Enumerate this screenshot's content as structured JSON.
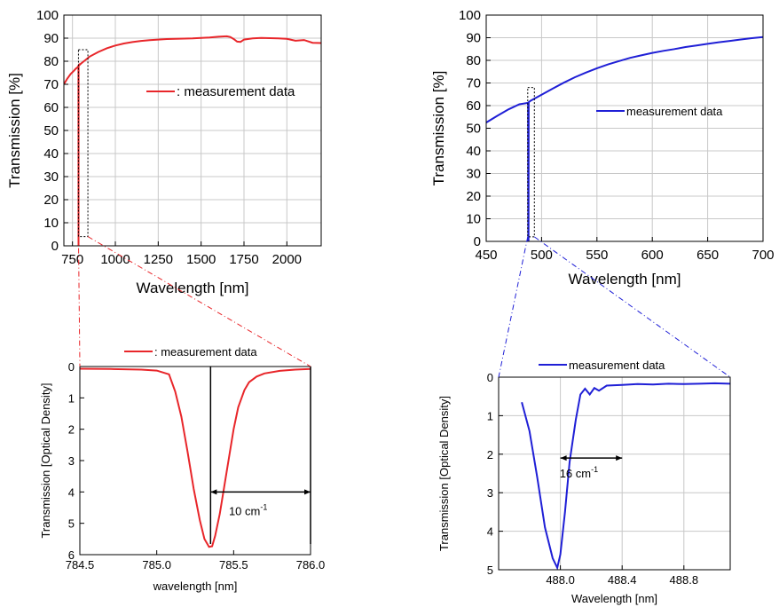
{
  "chart_data": [
    {
      "type": "line",
      "xlabel": "Wavelength [nm]",
      "ylabel": "Transmission [%]",
      "xlim": [
        700,
        2200
      ],
      "ylim": [
        0,
        100
      ],
      "xticks": [
        "750",
        "1000",
        "1250",
        "1500",
        "1750",
        "2000"
      ],
      "yticks": [
        "0",
        "10",
        "20",
        "30",
        "40",
        "50",
        "60",
        "70",
        "80",
        "90",
        "100"
      ],
      "grid": true,
      "legend": "center-right",
      "line_color": "#e8262a",
      "series": [
        {
          "name": ": measurement data",
          "x": [
            700,
            720,
            740,
            760,
            770,
            780,
            785,
            785.3,
            785.6,
            786,
            790,
            800,
            820,
            850,
            900,
            950,
            1000,
            1050,
            1100,
            1150,
            1200,
            1250,
            1300,
            1350,
            1400,
            1450,
            1500,
            1550,
            1600,
            1650,
            1670,
            1690,
            1710,
            1730,
            1750,
            1800,
            1850,
            1900,
            1950,
            2000,
            2050,
            2100,
            2150,
            2200
          ],
          "y": [
            70,
            72.5,
            74.5,
            76,
            76.8,
            77.4,
            78,
            0,
            0,
            78,
            78.3,
            79,
            80.2,
            82,
            84,
            85.6,
            86.8,
            87.7,
            88.3,
            88.8,
            89.1,
            89.4,
            89.6,
            89.7,
            89.8,
            89.9,
            90.1,
            90.3,
            90.6,
            90.8,
            90.5,
            89.6,
            88.5,
            88.4,
            89.4,
            89.9,
            90.1,
            90,
            89.9,
            89.7,
            88.9,
            89.2,
            88,
            87.9
          ]
        }
      ],
      "zoom_box": {
        "x": [
          785,
          840
        ],
        "y": [
          4,
          85
        ]
      }
    },
    {
      "type": "line",
      "xlabel": "Wavelength [nm]",
      "ylabel": "Transmission [%]",
      "xlim": [
        450,
        700
      ],
      "ylim": [
        0,
        100
      ],
      "xticks": [
        "450",
        "500",
        "550",
        "600",
        "650",
        "700"
      ],
      "yticks": [
        "0",
        "10",
        "20",
        "30",
        "40",
        "50",
        "60",
        "70",
        "80",
        "90",
        "100"
      ],
      "grid": true,
      "legend": "center-right",
      "line_color": "#1f1fd6",
      "series": [
        {
          "name": "measurement data",
          "x": [
            450,
            460,
            470,
            480,
            487.8,
            488,
            488.2,
            488.4,
            490,
            500,
            510,
            520,
            530,
            540,
            550,
            560,
            570,
            580,
            590,
            600,
            610,
            620,
            630,
            640,
            650,
            660,
            670,
            680,
            690,
            700
          ],
          "y": [
            52.5,
            55.5,
            58.3,
            60.6,
            61.2,
            0,
            0,
            61.5,
            62.1,
            64.8,
            67.5,
            70.1,
            72.5,
            74.6,
            76.5,
            78.2,
            79.7,
            81.1,
            82.2,
            83.3,
            84.2,
            85,
            85.9,
            86.6,
            87.3,
            88,
            88.6,
            89.2,
            89.8,
            90.3
          ]
        }
      ],
      "zoom_box": {
        "x": [
          487.5,
          493.5
        ],
        "y": [
          2,
          68
        ]
      }
    },
    {
      "type": "line",
      "xlabel": "wavelength [nm]",
      "ylabel": "Transmission [Optical Density]",
      "xlim": [
        784.5,
        786.0
      ],
      "ylim": [
        6,
        0
      ],
      "y_inverted": true,
      "xticks": [
        "784.5",
        "785.0",
        "785.5",
        "786.0"
      ],
      "yticks": [
        "0",
        "1",
        "2",
        "3",
        "4",
        "5",
        "6"
      ],
      "grid": false,
      "legend": "top-center",
      "line_color": "#e8262a",
      "series": [
        {
          "name": ": measurement data",
          "x": [
            784.5,
            784.7,
            784.9,
            785.0,
            785.08,
            785.12,
            785.16,
            785.2,
            785.24,
            785.28,
            785.31,
            785.34,
            785.36,
            785.38,
            785.41,
            785.44,
            785.47,
            785.5,
            785.53,
            785.57,
            785.6,
            785.65,
            785.7,
            785.8,
            785.9,
            786.0
          ],
          "y": [
            0.07,
            0.08,
            0.1,
            0.13,
            0.25,
            0.8,
            1.6,
            2.7,
            3.9,
            4.9,
            5.5,
            5.75,
            5.73,
            5.4,
            4.7,
            3.8,
            2.9,
            2.0,
            1.3,
            0.75,
            0.5,
            0.32,
            0.22,
            0.14,
            0.1,
            0.08
          ]
        }
      ],
      "annotations": [
        {
          "text": "10 cm",
          "superscript": "-1",
          "x_from": 785.35,
          "x_to": 786.0,
          "y": 4.0
        }
      ],
      "vlines": [
        785.35,
        786.0
      ]
    },
    {
      "type": "line",
      "xlabel": "Wavelength [nm]",
      "ylabel": "Transmission [Optical Density]",
      "xlim": [
        487.6,
        489.1
      ],
      "ylim": [
        5,
        0
      ],
      "y_inverted": true,
      "xticks": [
        "488.0",
        "488.4",
        "488.8"
      ],
      "yticks": [
        "0",
        "1",
        "2",
        "3",
        "4",
        "5"
      ],
      "grid": true,
      "legend": "top-center",
      "line_color": "#1f1fd6",
      "series": [
        {
          "name": "measurement data",
          "x": [
            487.75,
            487.8,
            487.85,
            487.9,
            487.95,
            487.98,
            488.0,
            488.03,
            488.06,
            488.1,
            488.13,
            488.16,
            488.19,
            488.22,
            488.25,
            488.3,
            488.4,
            488.5,
            488.6,
            488.7,
            488.8,
            488.9,
            489.0,
            489.1
          ],
          "y": [
            0.65,
            1.4,
            2.6,
            3.9,
            4.7,
            4.95,
            4.6,
            3.5,
            2.2,
            1.1,
            0.45,
            0.3,
            0.45,
            0.28,
            0.35,
            0.22,
            0.2,
            0.18,
            0.19,
            0.17,
            0.18,
            0.17,
            0.16,
            0.17
          ]
        }
      ],
      "annotations": [
        {
          "text": "16 cm",
          "superscript": "-1",
          "x_from": 488.0,
          "x_to": 488.4,
          "y": 2.1
        }
      ]
    }
  ]
}
